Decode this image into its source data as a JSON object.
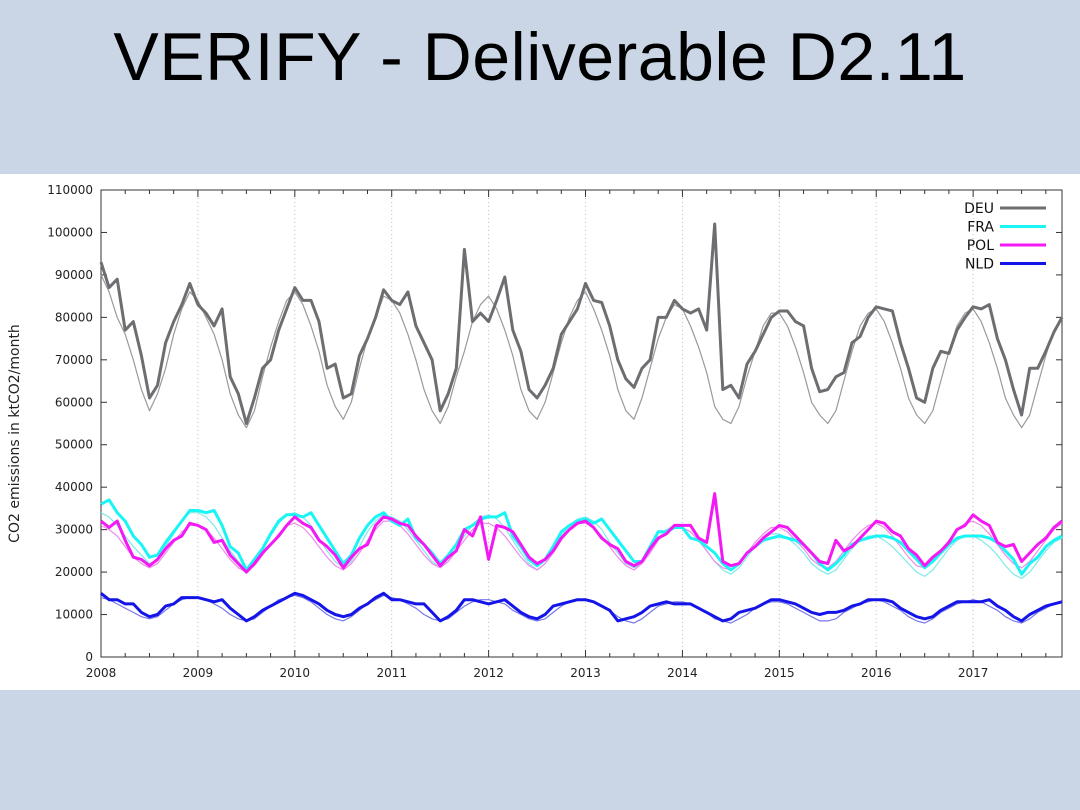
{
  "slide": {
    "title": "VERIFY - Deliverable D2.11"
  },
  "colors": {
    "DEU": "#6e6e72",
    "FRA": "#19f5f5",
    "POL": "#f418f4",
    "NLD": "#1414e8",
    "background": "#cad6e5"
  },
  "chart_data": {
    "type": "line",
    "title": "",
    "xlabel": "",
    "ylabel": "CO2 emissions in ktCO2/month",
    "xlim": [
      2008,
      2017.917
    ],
    "ylim": [
      0,
      110000
    ],
    "yticks": [
      0,
      10000,
      20000,
      30000,
      40000,
      50000,
      60000,
      70000,
      80000,
      90000,
      100000,
      110000
    ],
    "ytick_labels": [
      "0",
      "10000",
      "20000",
      "30000",
      "40000",
      "50000",
      "60000",
      "70000",
      "80000",
      "90000",
      "100000",
      "110000"
    ],
    "xticks": [
      2008,
      2009,
      2010,
      2011,
      2012,
      2013,
      2014,
      2015,
      2016,
      2017
    ],
    "xtick_labels": [
      "2008",
      "2009",
      "2010",
      "2011",
      "2012",
      "2013",
      "2014",
      "2015",
      "2016",
      "2017"
    ],
    "grid": "vertical dotted at years",
    "legend_position": "top-right",
    "x_start": "2008-01",
    "x_step": "monthly",
    "series": [
      {
        "name": "DEU",
        "color": "#6e6e72",
        "values": [
          93000,
          87000,
          89000,
          77000,
          79000,
          71000,
          61000,
          64000,
          74000,
          79000,
          83000,
          88000,
          83000,
          81000,
          78000,
          82000,
          66000,
          62000,
          55000,
          61000,
          68000,
          70000,
          77000,
          82000,
          87000,
          84000,
          84000,
          79000,
          68000,
          69000,
          61000,
          62000,
          71000,
          75000,
          80000,
          86500,
          84000,
          83000,
          86000,
          78000,
          74000,
          70000,
          58000,
          62000,
          68000,
          96000,
          79000,
          81000,
          79000,
          84000,
          89500,
          77000,
          72000,
          63000,
          61000,
          64000,
          68000,
          76000,
          79000,
          82000,
          88000,
          84000,
          83500,
          78000,
          70000,
          65500,
          63500,
          68000,
          70000,
          80000,
          80000,
          84000,
          82000,
          81000,
          82000,
          77000,
          102000,
          63000,
          64000,
          61000,
          69000,
          72000,
          76000,
          80000,
          81500,
          81500,
          79000,
          78000,
          68000,
          62500,
          63000,
          66000,
          67000,
          74000,
          75500,
          80000,
          82500,
          82000,
          81500,
          74000,
          68000,
          61000,
          60000,
          68000,
          72000,
          71500,
          77000,
          80000,
          82500,
          82000,
          83000,
          75000,
          70000,
          63000,
          57000,
          68000,
          68000,
          72000,
          76500,
          80000
        ]
      },
      {
        "name": "FRA",
        "color": "#19f5f5",
        "values": [
          36000,
          37000,
          34000,
          32000,
          28500,
          26500,
          23500,
          24000,
          27000,
          29500,
          32000,
          34500,
          34500,
          34000,
          34500,
          31000,
          26000,
          24500,
          20500,
          23000,
          25500,
          29000,
          32000,
          33500,
          33500,
          33000,
          34000,
          31000,
          28000,
          25000,
          22000,
          24000,
          28000,
          31000,
          33000,
          34000,
          32000,
          31000,
          32500,
          28000,
          26500,
          24500,
          22000,
          24000,
          26500,
          30000,
          31000,
          32500,
          33000,
          33000,
          34000,
          28500,
          26000,
          23000,
          21500,
          23000,
          26000,
          29500,
          31000,
          32000,
          32500,
          31500,
          32500,
          30000,
          27500,
          25000,
          22500,
          22500,
          26000,
          29500,
          29500,
          30500,
          30500,
          28000,
          27500,
          26000,
          24500,
          22000,
          20500,
          22000,
          24500,
          26000,
          27500,
          28000,
          28500,
          28000,
          27500,
          26500,
          24500,
          22000,
          20500,
          22000,
          24000,
          26500,
          27500,
          28000,
          28500,
          28500,
          28000,
          27000,
          25000,
          23000,
          21000,
          22500,
          24500,
          26500,
          28000,
          28500,
          28500,
          28500,
          28000,
          27000,
          25000,
          23000,
          19500,
          22000,
          23500,
          26000,
          27500,
          28500
        ]
      },
      {
        "name": "POL",
        "color": "#f418f4",
        "values": [
          32000,
          30500,
          32000,
          27500,
          23500,
          23000,
          21500,
          23000,
          25500,
          27500,
          28500,
          31500,
          31000,
          30000,
          27000,
          27500,
          24000,
          22000,
          20000,
          22000,
          24500,
          26500,
          28500,
          31000,
          33000,
          31500,
          30500,
          27500,
          26000,
          24000,
          21000,
          23500,
          25500,
          26500,
          31000,
          33000,
          32500,
          31500,
          31000,
          28500,
          26500,
          24000,
          21500,
          23500,
          25000,
          30000,
          28500,
          33000,
          23000,
          31000,
          30500,
          29500,
          26500,
          23500,
          22000,
          23000,
          25000,
          28000,
          30000,
          31500,
          32000,
          30500,
          28000,
          26500,
          25500,
          22500,
          21500,
          22500,
          25500,
          28000,
          29000,
          31000,
          31000,
          31000,
          28000,
          27000,
          38500,
          22500,
          21500,
          22000,
          24500,
          26000,
          28000,
          29500,
          31000,
          30500,
          28500,
          26500,
          24500,
          22500,
          22000,
          27500,
          25000,
          26000,
          28000,
          30000,
          32000,
          31500,
          29500,
          28500,
          25500,
          24000,
          21500,
          23500,
          25000,
          27000,
          30000,
          31000,
          33500,
          32000,
          31000,
          27000,
          26000,
          26500,
          22500,
          24500,
          26500,
          28000,
          30500,
          32000
        ]
      },
      {
        "name": "NLD",
        "color": "#1414e8",
        "values": [
          15000,
          13500,
          13500,
          12500,
          12500,
          10500,
          9500,
          10000,
          12000,
          12500,
          14000,
          14000,
          14000,
          13500,
          13000,
          13500,
          11500,
          10000,
          8500,
          9500,
          11000,
          12000,
          13000,
          14000,
          15000,
          14500,
          13500,
          12500,
          11000,
          10000,
          9500,
          10000,
          11500,
          12500,
          14000,
          15000,
          13500,
          13500,
          13000,
          12500,
          12500,
          10500,
          8500,
          9500,
          11000,
          13500,
          13500,
          13000,
          12500,
          13000,
          13500,
          12000,
          10500,
          9500,
          9000,
          10000,
          12000,
          12500,
          13000,
          13500,
          13500,
          13000,
          12000,
          11000,
          8500,
          9000,
          9500,
          10500,
          12000,
          12500,
          13000,
          12500,
          12500,
          12500,
          11500,
          10500,
          9500,
          8500,
          9000,
          10500,
          11000,
          11500,
          12500,
          13500,
          13500,
          13000,
          12500,
          11500,
          10500,
          10000,
          10500,
          10500,
          11000,
          12000,
          12500,
          13500,
          13500,
          13500,
          13000,
          11500,
          10500,
          9500,
          9000,
          9500,
          11000,
          12000,
          13000,
          13000,
          13000,
          13000,
          13500,
          12000,
          11000,
          9500,
          8500,
          10000,
          11000,
          12000,
          12500,
          13000
        ]
      }
    ],
    "reference_series": [
      {
        "color": "#9a9a9e",
        "values": [
          90000,
          86000,
          80000,
          76000,
          70000,
          63000,
          58000,
          62000,
          68000,
          76000,
          82000,
          86000,
          84000,
          80000,
          76000,
          70000,
          62000,
          57000,
          54000,
          58000,
          66000,
          73000,
          79000,
          84000,
          86000,
          83000,
          78000,
          72000,
          64000,
          59000,
          56000,
          60000,
          68000,
          75000,
          80000,
          85000,
          84000,
          81000,
          76000,
          70000,
          63000,
          58000,
          55000,
          59000,
          66000,
          72000,
          79000,
          83000,
          85000,
          82000,
          77000,
          71000,
          63000,
          58000,
          56000,
          60000,
          67000,
          74000,
          80000,
          84000,
          86000,
          82000,
          77000,
          71000,
          63000,
          58000,
          56000,
          61000,
          68000,
          75000,
          80000,
          83000,
          82000,
          78000,
          73000,
          67000,
          59000,
          56000,
          55000,
          59000,
          66000,
          72000,
          78000,
          81000,
          81000,
          78000,
          73000,
          67000,
          60000,
          57000,
          55000,
          58000,
          65000,
          72000,
          78000,
          81000,
          82000,
          79000,
          74000,
          68000,
          61000,
          57000,
          55000,
          58000,
          65000,
          72000,
          78000,
          81000,
          82000,
          79000,
          74000,
          68000,
          61000,
          57000,
          54000,
          57000,
          64000,
          71000,
          77000,
          80000
        ]
      },
      {
        "color": "#7fe9e9",
        "values": [
          34000,
          33000,
          31000,
          28500,
          26000,
          24000,
          22000,
          23000,
          26000,
          29000,
          32000,
          34000,
          34000,
          33000,
          31000,
          28000,
          25000,
          22500,
          20500,
          22000,
          25000,
          28500,
          31500,
          33500,
          34000,
          33000,
          31000,
          28000,
          25000,
          22500,
          21000,
          22500,
          26000,
          29500,
          32000,
          33500,
          33000,
          32000,
          30000,
          27500,
          25000,
          22500,
          21000,
          22500,
          25500,
          28500,
          31000,
          33000,
          33500,
          32500,
          30500,
          27500,
          24500,
          22000,
          20500,
          22000,
          25000,
          28500,
          31000,
          32500,
          33000,
          32000,
          30000,
          27000,
          24500,
          22000,
          21000,
          22000,
          25000,
          28000,
          30000,
          31000,
          30500,
          29500,
          27500,
          25000,
          22500,
          20500,
          19500,
          21000,
          23500,
          26000,
          28000,
          29000,
          29000,
          28000,
          26500,
          24500,
          22000,
          20500,
          19500,
          20500,
          23000,
          25500,
          27500,
          28500,
          28500,
          27500,
          26000,
          24000,
          22000,
          20000,
          19000,
          20500,
          23000,
          25500,
          27500,
          28500,
          28500,
          27500,
          26000,
          24000,
          21500,
          19500,
          18500,
          20000,
          22500,
          25000,
          27000,
          28000
        ]
      },
      {
        "color": "#ee8cee",
        "values": [
          31000,
          30000,
          28500,
          26000,
          23500,
          22000,
          21000,
          22000,
          24500,
          27000,
          29500,
          31000,
          31000,
          30000,
          28000,
          25500,
          23000,
          21000,
          20000,
          21500,
          24000,
          26500,
          29000,
          31000,
          31500,
          30500,
          28500,
          26000,
          23500,
          21500,
          20500,
          22000,
          24500,
          27500,
          30000,
          32000,
          32000,
          31000,
          29000,
          26500,
          24000,
          22000,
          21000,
          22500,
          25000,
          27500,
          30000,
          31500,
          31500,
          30500,
          28500,
          26000,
          23500,
          21500,
          20500,
          22000,
          24500,
          27500,
          30000,
          31500,
          31500,
          30500,
          28500,
          26000,
          23500,
          21500,
          20500,
          22000,
          24500,
          27500,
          29500,
          30500,
          30500,
          29500,
          27500,
          25000,
          22500,
          21000,
          20500,
          22000,
          24500,
          27000,
          29000,
          30500,
          30500,
          29500,
          27500,
          25500,
          23000,
          21500,
          21000,
          22500,
          25000,
          27500,
          29500,
          31000,
          31500,
          30500,
          28500,
          26000,
          23500,
          21500,
          21000,
          22500,
          25000,
          27500,
          30000,
          31500,
          32000,
          31000,
          29000,
          26500,
          24000,
          22000,
          21000,
          22500,
          25000,
          27500,
          30000,
          31500
        ]
      },
      {
        "color": "#7777ec",
        "values": [
          14000,
          13500,
          12500,
          11500,
          10500,
          9500,
          9000,
          9500,
          11000,
          12500,
          13500,
          14000,
          14000,
          13500,
          12500,
          11500,
          10000,
          9000,
          8500,
          9000,
          10500,
          12000,
          13500,
          14000,
          14500,
          14000,
          13000,
          11500,
          10000,
          9000,
          8500,
          9500,
          11000,
          12500,
          13500,
          14500,
          14000,
          13500,
          12500,
          11500,
          10000,
          9000,
          8500,
          9000,
          10500,
          12000,
          13000,
          13500,
          13500,
          13000,
          12500,
          11000,
          10000,
          9000,
          8500,
          9000,
          10500,
          12000,
          13000,
          13500,
          13500,
          13000,
          12000,
          11000,
          9500,
          8500,
          8000,
          9000,
          10500,
          12000,
          12500,
          13000,
          13000,
          12500,
          11500,
          10500,
          9000,
          8500,
          8000,
          9000,
          10000,
          11500,
          12500,
          13000,
          13000,
          12500,
          11500,
          10500,
          9500,
          8500,
          8500,
          9000,
          10500,
          11500,
          12500,
          13000,
          13500,
          13000,
          12000,
          11000,
          9500,
          8500,
          8000,
          9000,
          10500,
          11500,
          12500,
          13000,
          13500,
          13000,
          12000,
          11000,
          9500,
          8500,
          8000,
          9000,
          10500,
          11500,
          12500,
          13000
        ]
      }
    ]
  }
}
